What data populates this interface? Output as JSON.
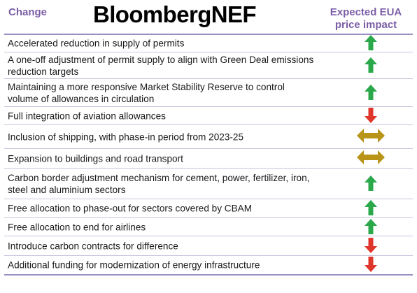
{
  "header": {
    "change_label": "Change",
    "brand": "BloombergNEF",
    "impact_label_1": "Expected EUA",
    "impact_label_2": "price impact"
  },
  "colors": {
    "up": "#2aa84a",
    "down": "#e0352b",
    "neutral": "#b89418",
    "header_text": "#7b5ea7"
  },
  "rows": [
    {
      "text": "Accelerated reduction in supply of permits",
      "impact": "up"
    },
    {
      "text": "A one-off adjustment of permit supply to align with Green Deal emissions reduction targets",
      "impact": "up"
    },
    {
      "text": "Maintaining a more responsive Market Stability Reserve to control volume of allowances in circulation",
      "impact": "up"
    },
    {
      "text": "Full integration of aviation allowances",
      "impact": "down"
    },
    {
      "text": "Inclusion of shipping, with phase-in period from 2023-25",
      "impact": "neutral"
    },
    {
      "text": "Expansion to buildings and road transport",
      "impact": "neutral"
    },
    {
      "text": "Carbon border adjustment mechanism for cement, power, fertilizer, iron, steel and aluminium sectors",
      "impact": "up"
    },
    {
      "text": "Free allocation to phase-out for sectors covered by CBAM",
      "impact": "up"
    },
    {
      "text": "Free allocation to end for airlines",
      "impact": "up"
    },
    {
      "text": "Introduce carbon contracts for difference",
      "impact": "down"
    },
    {
      "text": "Additional funding for modernization of energy infrastructure",
      "impact": "down"
    }
  ]
}
